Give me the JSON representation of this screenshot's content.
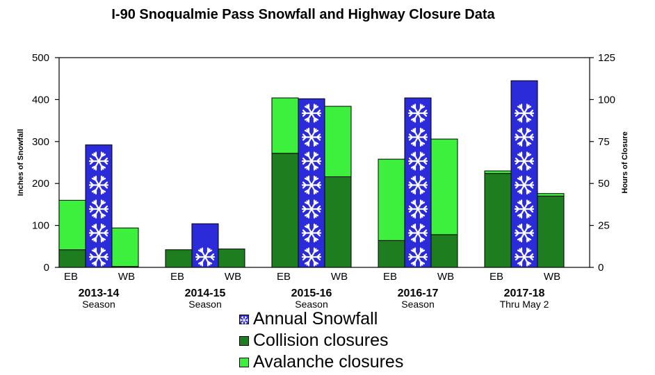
{
  "chart_data": {
    "type": "bar",
    "title": "I-90 Snoqualmie Pass Snowfall and Highway Closure Data",
    "ylabel_left": "Inches of Snowfall",
    "ylabel_right": "Hours of Closure",
    "ylim_left": [
      0,
      500
    ],
    "ylim_right": [
      0,
      125
    ],
    "yticks_left": [
      "0",
      "100",
      "200",
      "300",
      "400",
      "500"
    ],
    "yticks_right": [
      "0",
      "25",
      "50",
      "75",
      "100",
      "125"
    ],
    "direction_labels": {
      "eb": "EB",
      "wb": "WB"
    },
    "seasons": [
      {
        "label": "2013-14",
        "sublabel": "Season",
        "snowfall": 292,
        "eb": {
          "collision": 10.5,
          "avalanche": 29.5
        },
        "wb": {
          "collision": 0.5,
          "avalanche": 23
        }
      },
      {
        "label": "2014-15",
        "sublabel": "Season",
        "snowfall": 104,
        "eb": {
          "collision": 10.5,
          "avalanche": 0
        },
        "wb": {
          "collision": 11,
          "avalanche": 0
        }
      },
      {
        "label": "2015-16",
        "sublabel": "Season",
        "snowfall": 402,
        "eb": {
          "collision": 68,
          "avalanche": 33
        },
        "wb": {
          "collision": 54,
          "avalanche": 42
        }
      },
      {
        "label": "2016-17",
        "sublabel": "Season",
        "snowfall": 404,
        "eb": {
          "collision": 16,
          "avalanche": 48.5
        },
        "wb": {
          "collision": 19.5,
          "avalanche": 57
        }
      },
      {
        "label": "2017-18",
        "sublabel": "Thru May 2",
        "snowfall": 445,
        "eb": {
          "collision": 56,
          "avalanche": 1.5
        },
        "wb": {
          "collision": 42.5,
          "avalanche": 1.5
        }
      }
    ],
    "legend": [
      {
        "key": "snowfall",
        "label": "Annual Snowfall",
        "color": "#2b2bd9"
      },
      {
        "key": "collision",
        "label": "Collision closures",
        "color": "#1e7d1e"
      },
      {
        "key": "avalanche",
        "label": "Avalanche closures",
        "color": "#3df03d"
      }
    ],
    "colors": {
      "snowfall": "#2b2bd9",
      "collision": "#1e7d1e",
      "avalanche": "#3df03d"
    }
  }
}
